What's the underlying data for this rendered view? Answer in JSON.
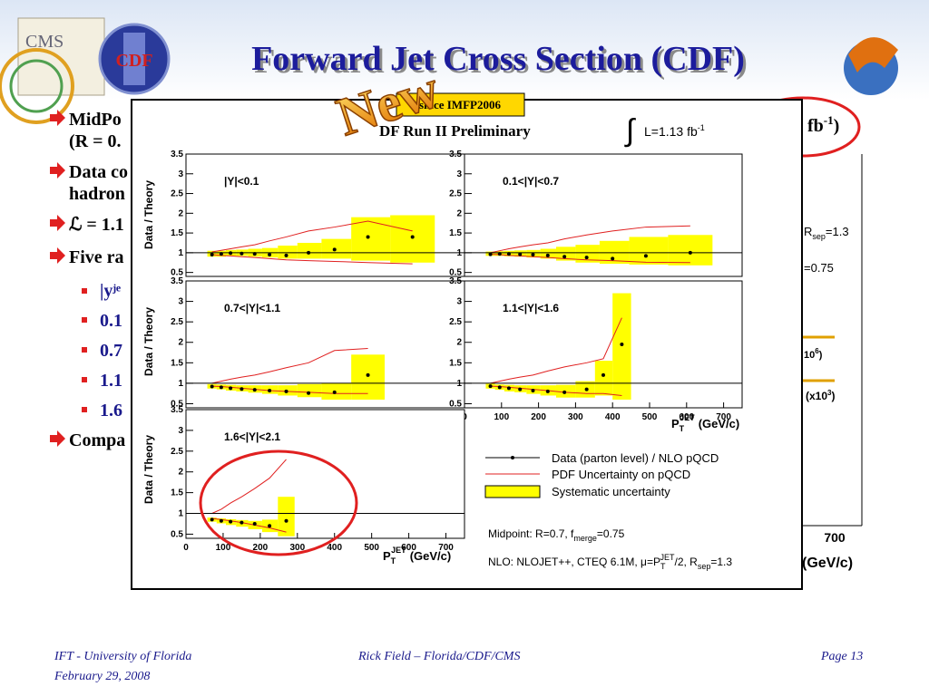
{
  "header": {
    "title": "Forward Jet Cross Section (CDF)"
  },
  "bullets": {
    "main": [
      "MidPo",
      "(R = 0.",
      "Data co",
      "hadron",
      "ℒ = 1.1",
      "Five ra",
      "Compa"
    ],
    "sub_first": "|yʲᵉ",
    "sub": [
      "0.1",
      "0.7",
      "1.1",
      "1.6"
    ]
  },
  "behind": {
    "fb": "fb",
    "fb_exp": "-1",
    "fb_close": ")",
    "rsep": "R",
    "rsep_sub": "sep",
    "rsep_val": "=1.3",
    "fmerge": "=0.75",
    "x6": "10",
    "x6_exp": "6",
    "x6_close": ")",
    "x3": "(x10",
    "x3_exp": "3",
    "x3_close": ")",
    "tick700": "700",
    "unit": "(GeV/c)"
  },
  "figure": {
    "badge": "New",
    "since": "since IMFP2006",
    "run_label": "DF Run II Preliminary",
    "lumi": "L=1.13 fb",
    "lumi_exp": "-1",
    "y_label": "Data / Theory",
    "x_label": {
      "p": "P",
      "sub": "T",
      "sup": "JET",
      "unit": "(GeV/c)"
    },
    "legend": [
      "Data (parton level) / NLO pQCD",
      "PDF Uncertainty on pQCD",
      "Systematic uncertainty"
    ],
    "midpoint": [
      "Midpoint:  R=0.7,  f",
      "merge",
      "=0.75"
    ],
    "nlo": [
      "NLO: NLOJET++, CTEQ 6.1M, μ=P",
      "T",
      "JET",
      "/2, R",
      "sep",
      "=1.3"
    ]
  },
  "chart_data": [
    {
      "type": "errorbar",
      "title": "|Y|<0.1",
      "xlim": [
        0,
        750
      ],
      "ylim": [
        0.4,
        3.5
      ],
      "yticks": [
        0.5,
        1,
        1.5,
        2,
        2.5,
        3,
        3.5
      ],
      "reference": 1,
      "x": [
        70,
        95,
        120,
        150,
        185,
        225,
        270,
        330,
        400,
        490,
        610
      ],
      "values": [
        0.95,
        0.97,
        0.99,
        0.98,
        0.97,
        0.95,
        0.93,
        1.0,
        1.08,
        1.4,
        1.4
      ],
      "band_lo": [
        0.9,
        0.9,
        0.92,
        0.92,
        0.9,
        0.88,
        0.85,
        0.85,
        0.85,
        0.8,
        0.75
      ],
      "band_hi": [
        1.05,
        1.05,
        1.07,
        1.08,
        1.1,
        1.12,
        1.18,
        1.25,
        1.35,
        1.9,
        1.95
      ],
      "pdf_lo": [
        0.95,
        0.93,
        0.92,
        0.9,
        0.88,
        0.85,
        0.82,
        0.8,
        0.78,
        0.75,
        0.72
      ],
      "pdf_hi": [
        1.02,
        1.06,
        1.1,
        1.15,
        1.2,
        1.3,
        1.4,
        1.55,
        1.65,
        1.8,
        1.55
      ]
    },
    {
      "type": "errorbar",
      "title": "0.1<|Y|<0.7",
      "xlim": [
        0,
        750
      ],
      "ylim": [
        0.4,
        3.5
      ],
      "yticks": [
        0.5,
        1,
        1.5,
        2,
        2.5,
        3,
        3.5
      ],
      "reference": 1,
      "x": [
        70,
        95,
        120,
        150,
        185,
        225,
        270,
        330,
        400,
        490,
        610
      ],
      "values": [
        0.96,
        0.97,
        0.97,
        0.96,
        0.95,
        0.93,
        0.9,
        0.88,
        0.85,
        0.92,
        1.0
      ],
      "band_lo": [
        0.92,
        0.92,
        0.91,
        0.9,
        0.88,
        0.85,
        0.8,
        0.75,
        0.72,
        0.7,
        0.68
      ],
      "band_hi": [
        1.03,
        1.04,
        1.05,
        1.06,
        1.07,
        1.1,
        1.15,
        1.2,
        1.3,
        1.4,
        1.45
      ],
      "pdf_lo": [
        0.96,
        0.95,
        0.93,
        0.92,
        0.9,
        0.88,
        0.85,
        0.82,
        0.8,
        0.76,
        0.75
      ],
      "pdf_hi": [
        1.0,
        1.05,
        1.1,
        1.15,
        1.2,
        1.25,
        1.35,
        1.45,
        1.55,
        1.65,
        1.68
      ]
    },
    {
      "type": "errorbar",
      "title": "0.7<|Y|<1.1",
      "xlim": [
        0,
        750
      ],
      "ylim": [
        0.4,
        3.5
      ],
      "yticks": [
        0.5,
        1,
        1.5,
        2,
        2.5,
        3,
        3.5
      ],
      "reference": 1,
      "x": [
        70,
        95,
        120,
        150,
        185,
        225,
        270,
        330,
        400,
        490
      ],
      "values": [
        0.92,
        0.9,
        0.88,
        0.86,
        0.84,
        0.82,
        0.8,
        0.76,
        0.78,
        1.2
      ],
      "band_lo": [
        0.87,
        0.85,
        0.82,
        0.8,
        0.77,
        0.74,
        0.7,
        0.66,
        0.6,
        0.6
      ],
      "band_hi": [
        0.98,
        0.97,
        0.96,
        0.95,
        0.95,
        0.95,
        0.95,
        0.98,
        1.0,
        1.7
      ],
      "pdf_lo": [
        0.93,
        0.92,
        0.9,
        0.88,
        0.85,
        0.82,
        0.8,
        0.78,
        0.75,
        0.75
      ],
      "pdf_hi": [
        1.0,
        1.05,
        1.1,
        1.15,
        1.2,
        1.28,
        1.38,
        1.5,
        1.8,
        1.85
      ]
    },
    {
      "type": "errorbar",
      "title": "1.1<|Y|<1.6",
      "xlim": [
        0,
        750
      ],
      "ylim": [
        0.4,
        3.5
      ],
      "yticks": [
        0.5,
        1,
        1.5,
        2,
        2.5,
        3,
        3.5
      ],
      "xticks": [
        0,
        100,
        200,
        300,
        400,
        500,
        600,
        700
      ],
      "reference": 1,
      "x": [
        70,
        95,
        120,
        150,
        185,
        225,
        270,
        330,
        375,
        425
      ],
      "values": [
        0.93,
        0.9,
        0.88,
        0.85,
        0.82,
        0.8,
        0.78,
        0.85,
        1.2,
        1.95
      ],
      "band_lo": [
        0.87,
        0.84,
        0.8,
        0.78,
        0.74,
        0.7,
        0.65,
        0.65,
        0.7,
        0.6
      ],
      "band_hi": [
        0.99,
        0.97,
        0.96,
        0.95,
        0.95,
        0.95,
        0.96,
        1.05,
        1.55,
        3.2
      ],
      "pdf_lo": [
        0.93,
        0.92,
        0.9,
        0.88,
        0.85,
        0.82,
        0.78,
        0.75,
        0.75,
        0.7
      ],
      "pdf_hi": [
        1.0,
        1.05,
        1.1,
        1.15,
        1.2,
        1.3,
        1.4,
        1.5,
        1.6,
        2.6
      ]
    },
    {
      "type": "errorbar",
      "title": "1.6<|Y|<2.1",
      "xlim": [
        0,
        750
      ],
      "ylim": [
        0.4,
        3.5
      ],
      "yticks": [
        0.5,
        1,
        1.5,
        2,
        2.5,
        3,
        3.5
      ],
      "xticks": [
        0,
        100,
        200,
        300,
        400,
        500,
        600,
        700
      ],
      "reference": 1,
      "x": [
        70,
        95,
        120,
        150,
        185,
        225,
        270
      ],
      "values": [
        0.85,
        0.82,
        0.8,
        0.78,
        0.75,
        0.7,
        0.82
      ],
      "band_lo": [
        0.8,
        0.76,
        0.72,
        0.68,
        0.62,
        0.55,
        0.45
      ],
      "band_hi": [
        0.9,
        0.88,
        0.86,
        0.84,
        0.82,
        0.85,
        1.4
      ],
      "pdf_lo": [
        0.88,
        0.85,
        0.82,
        0.78,
        0.72,
        0.65,
        0.55
      ],
      "pdf_hi": [
        1.0,
        1.1,
        1.25,
        1.4,
        1.6,
        1.85,
        2.3
      ]
    }
  ],
  "footer": {
    "left": "IFT - University of Florida",
    "date": "February 29, 2008",
    "center": "Rick Field – Florida/CDF/CMS",
    "right": "Page 13"
  }
}
